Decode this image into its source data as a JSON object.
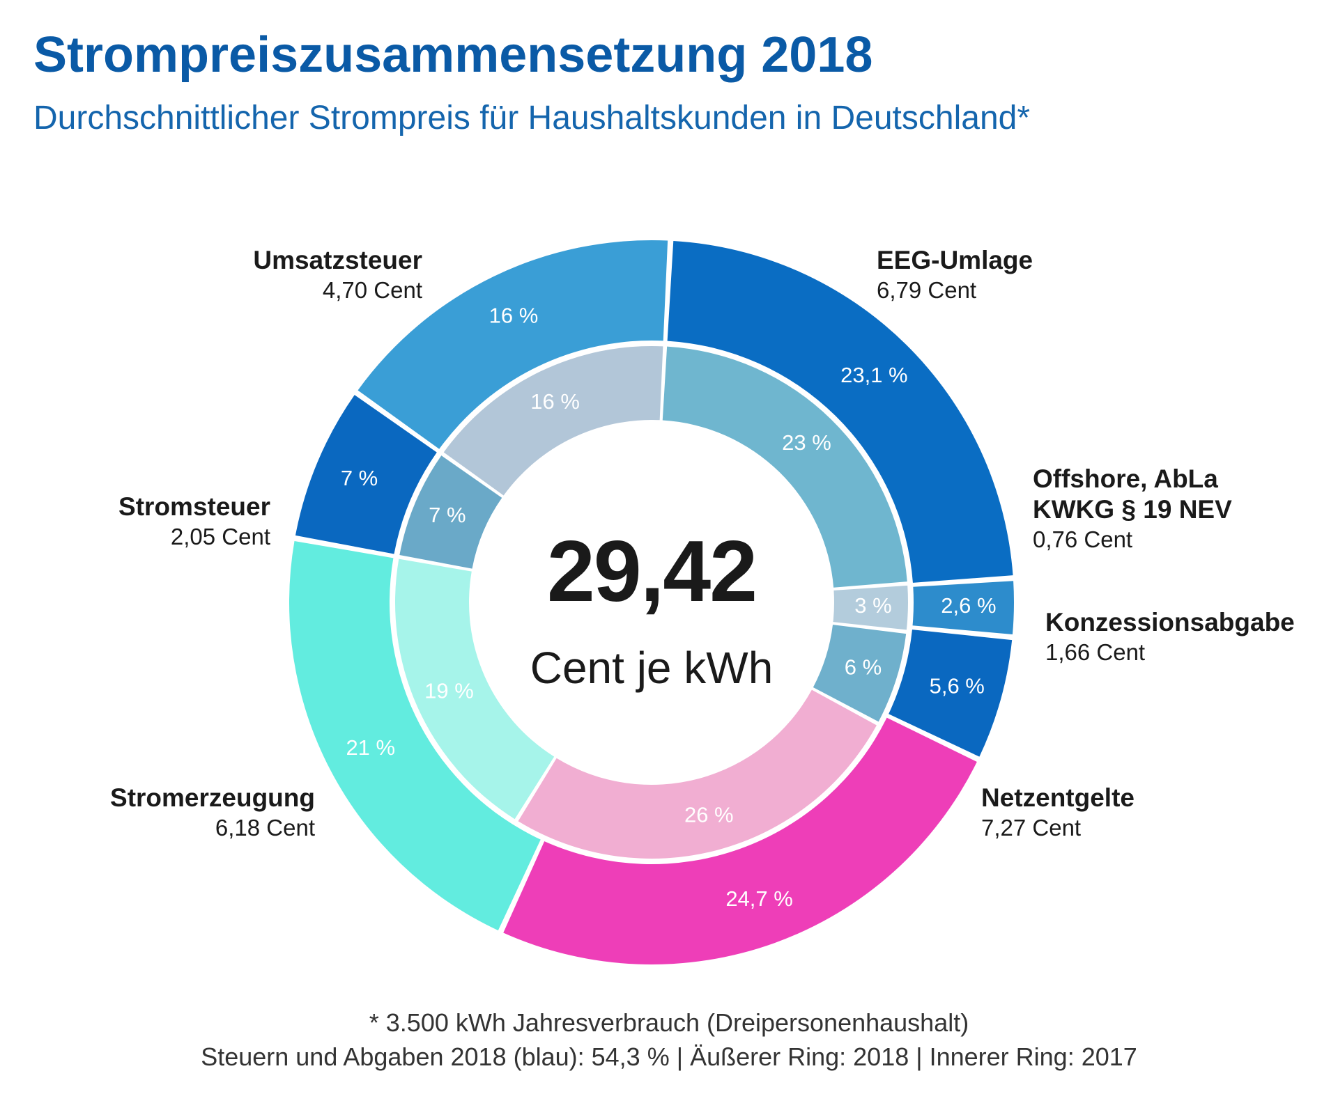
{
  "title": "Strompreiszusammensetzung 2018",
  "subtitle": "Durchschnittlicher Strompreis für Haushaltskunden in Deutschland*",
  "center": {
    "value": "29,42",
    "unit": "Cent je kWh"
  },
  "footnotes": [
    "* 3.500 kWh Jahresverbrauch (Dreipersonenhaushalt)",
    "Steuern und Abgaben 2018 (blau): 54,3 % | Äußerer Ring: 2018 | Innerer Ring: 2017"
  ],
  "chart_data": {
    "type": "pie",
    "variant": "double-donut",
    "total": 29.42,
    "unit": "Cent je kWh",
    "series": [
      {
        "name": "Äußerer Ring: 2018",
        "ring": "outer",
        "values": [
          23.1,
          2.6,
          5.6,
          24.7,
          21,
          7,
          16
        ],
        "labels": [
          "23,1 %",
          "2,6 %",
          "5,6 %",
          "24,7 %",
          "21 %",
          "7 %",
          "16 %"
        ]
      },
      {
        "name": "Innerer Ring: 2017",
        "ring": "inner",
        "values": [
          23,
          3,
          6,
          26,
          19,
          7,
          16
        ],
        "labels": [
          "23 %",
          "3 %",
          "6 %",
          "26 %",
          "19 %",
          "7 %",
          "16 %"
        ]
      }
    ],
    "categories": [
      {
        "name": "EEG-Umlage",
        "value_text": "6,79 Cent",
        "cent": 6.79,
        "color_outer": "#0a6dc3",
        "color_inner": "#6fb6cf",
        "label_side": "right"
      },
      {
        "name": "Offshore, AbLa\nKWKG § 19 NEV",
        "value_text": "0,76 Cent",
        "cent": 0.76,
        "color_outer": "#2d8ccc",
        "color_inner": "#b3ccdc",
        "label_side": "right"
      },
      {
        "name": "Konzessionsabgabe",
        "value_text": "1,66 Cent",
        "cent": 1.66,
        "color_outer": "#0a68c0",
        "color_inner": "#6fb0cc",
        "label_side": "right"
      },
      {
        "name": "Netzentgelte",
        "value_text": "7,27 Cent",
        "cent": 7.27,
        "color_outer": "#ee3eb8",
        "color_inner": "#f1aed2",
        "label_side": "right"
      },
      {
        "name": "Stromerzeugung",
        "value_text": "6,18 Cent",
        "cent": 6.18,
        "color_outer": "#62ecdf",
        "color_inner": "#a6f4ea",
        "label_side": "left"
      },
      {
        "name": "Stromsteuer",
        "value_text": "2,05 Cent",
        "cent": 2.05,
        "color_outer": "#0a68c0",
        "color_inner": "#6aa9c8",
        "label_side": "left"
      },
      {
        "name": "Umsatzsteuer",
        "value_text": "4,70 Cent",
        "cent": 4.7,
        "color_outer": "#3a9ed6",
        "color_inner": "#b2c6d8",
        "label_side": "left"
      }
    ]
  }
}
